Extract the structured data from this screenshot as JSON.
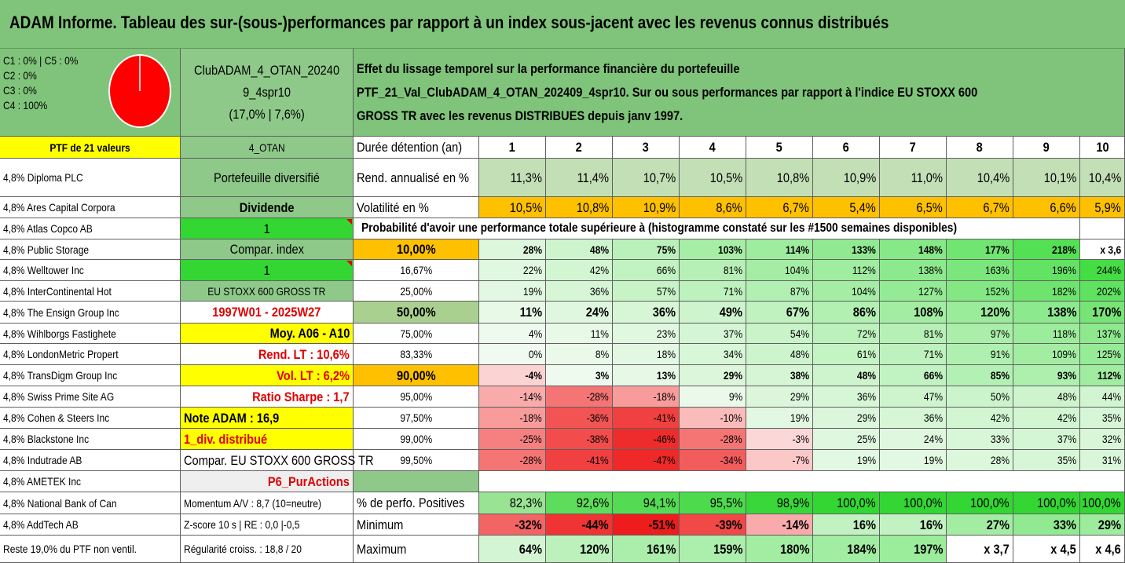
{
  "title": "ADAM Informe. Tableau des sur-(sous-)performances par rapport à un index sous-jacent avec les revenus connus distribués",
  "pie_legend": [
    "C1 : 0% | C5 : 0%",
    "C2 : 0%",
    "C3 : 0%",
    "C4 : 100%"
  ],
  "pie_color": "#ff0000",
  "portfolio_name": "ClubADAM_4_OTAN_20240 9_4spr10",
  "portfolio_line1": "ClubADAM_4_OTAN_20240",
  "portfolio_line2": "9_4spr10",
  "portfolio_line3": "(17,0% | 7,6%)",
  "description": "Effet du lissage temporel sur la performance financière du portefeuille PTF_21_Val_ClubADAM_4_OTAN_202409_4spr10. Sur ou sous performances par rapport à l'indice EU STOXX 600 GROSS TR avec les revenus DISTRIBUES depuis janv 1997.",
  "holdings_header": "PTF de 21 valeurs",
  "holdings": [
    "4,8% Diploma PLC",
    "4,8% Ares Capital Corpora",
    "4,8% Atlas Copco AB",
    "4,8% Public Storage",
    "4,8% Welltower Inc",
    "4,8% InterContinental Hot",
    "4,8% The Ensign Group Inc",
    "4,8% Wihlborgs Fastighete",
    "4,8% LondonMetric Propert",
    "4,8% TransDigm Group Inc",
    "4,8% Swiss Prime Site AG",
    "4,8% Cohen & Steers Inc",
    "4,8% Blackstone Inc",
    "4,8% Indutrade AB",
    "4,8% AMETEK Inc",
    "4,8% National Bank of Can",
    "4,8% AddTech AB",
    "Reste 19,0% du PTF non ventil."
  ],
  "info": [
    "4_OTAN",
    "Portefeuille diversifié",
    "Dividende",
    "1",
    "Compar. index",
    "1",
    "EU STOXX 600 GROSS TR",
    "1997W01 - 2025W27",
    "Moy. A06 - A10",
    "Rend. LT : 10,6%",
    "Vol. LT : 6,2%",
    "Ratio Sharpe : 1,7",
    "Note ADAM : 16,9",
    "1_div. distribué",
    "Compar. EU STOXX 600 GROSS TR",
    "P6_PurActions",
    "Momentum A/V : 8,7 (10=neutre)",
    "Z-score 10 s | RE : 0,0 |-0,5",
    "Régularité croiss. : 18,8 / 20"
  ],
  "duration_label": "Durée détention (an)",
  "years": [
    "1",
    "2",
    "3",
    "4",
    "5",
    "6",
    "7",
    "8",
    "9",
    "10"
  ],
  "rend_label": "Rend. annualisé en %",
  "rend": [
    "11,3%",
    "11,4%",
    "10,7%",
    "10,5%",
    "10,8%",
    "10,9%",
    "11,0%",
    "10,4%",
    "10,1%",
    "10,4%"
  ],
  "vol_label": "Volatilité en %",
  "vol": [
    "10,5%",
    "10,8%",
    "10,9%",
    "8,6%",
    "6,7%",
    "5,4%",
    "6,5%",
    "6,7%",
    "6,6%",
    "5,9%"
  ],
  "prob_header": "Probabilité d'avoir une performance totale supérieure à (histogramme constaté sur les #1500 semaines disponibles)",
  "prob_rows": [
    {
      "p": "10,00%",
      "v": [
        "28%",
        "48%",
        "75%",
        "103%",
        "114%",
        "133%",
        "148%",
        "177%",
        "218%",
        "x 3,6"
      ]
    },
    {
      "p": "16,67%",
      "v": [
        "22%",
        "42%",
        "66%",
        "81%",
        "104%",
        "112%",
        "138%",
        "163%",
        "196%",
        "244%"
      ]
    },
    {
      "p": "25,00%",
      "v": [
        "19%",
        "36%",
        "57%",
        "71%",
        "87%",
        "104%",
        "127%",
        "152%",
        "182%",
        "202%"
      ]
    },
    {
      "p": "50,00%",
      "v": [
        "11%",
        "24%",
        "36%",
        "49%",
        "67%",
        "86%",
        "108%",
        "120%",
        "138%",
        "170%"
      ]
    },
    {
      "p": "75,00%",
      "v": [
        "4%",
        "11%",
        "23%",
        "37%",
        "54%",
        "72%",
        "81%",
        "97%",
        "118%",
        "137%"
      ]
    },
    {
      "p": "83,33%",
      "v": [
        "0%",
        "8%",
        "18%",
        "34%",
        "48%",
        "61%",
        "71%",
        "91%",
        "109%",
        "125%"
      ]
    },
    {
      "p": "90,00%",
      "v": [
        "-4%",
        "3%",
        "13%",
        "29%",
        "38%",
        "48%",
        "66%",
        "85%",
        "93%",
        "112%"
      ]
    },
    {
      "p": "95,00%",
      "v": [
        "-14%",
        "-28%",
        "-18%",
        "9%",
        "29%",
        "36%",
        "47%",
        "50%",
        "48%",
        "44%"
      ]
    },
    {
      "p": "97,50%",
      "v": [
        "-18%",
        "-36%",
        "-41%",
        "-10%",
        "19%",
        "29%",
        "36%",
        "42%",
        "42%",
        "35%"
      ]
    },
    {
      "p": "99,00%",
      "v": [
        "-25%",
        "-38%",
        "-46%",
        "-28%",
        "-3%",
        "25%",
        "24%",
        "33%",
        "37%",
        "32%"
      ]
    },
    {
      "p": "99,50%",
      "v": [
        "-28%",
        "-41%",
        "-47%",
        "-34%",
        "-7%",
        "19%",
        "19%",
        "28%",
        "35%",
        "31%"
      ]
    }
  ],
  "pos_label": "% de perfo. Positives",
  "pos": [
    "82,3%",
    "92,6%",
    "94,1%",
    "95,5%",
    "98,9%",
    "100,0%",
    "100,0%",
    "100,0%",
    "100,0%",
    "100,0%"
  ],
  "min_label": "Minimum",
  "min": [
    "-32%",
    "-44%",
    "-51%",
    "-39%",
    "-14%",
    "16%",
    "16%",
    "27%",
    "33%",
    "29%"
  ],
  "max_label": "Maximum",
  "max": [
    "64%",
    "120%",
    "161%",
    "159%",
    "180%",
    "184%",
    "197%",
    "x 3,7",
    "x 4,5",
    "x 4,6"
  ]
}
